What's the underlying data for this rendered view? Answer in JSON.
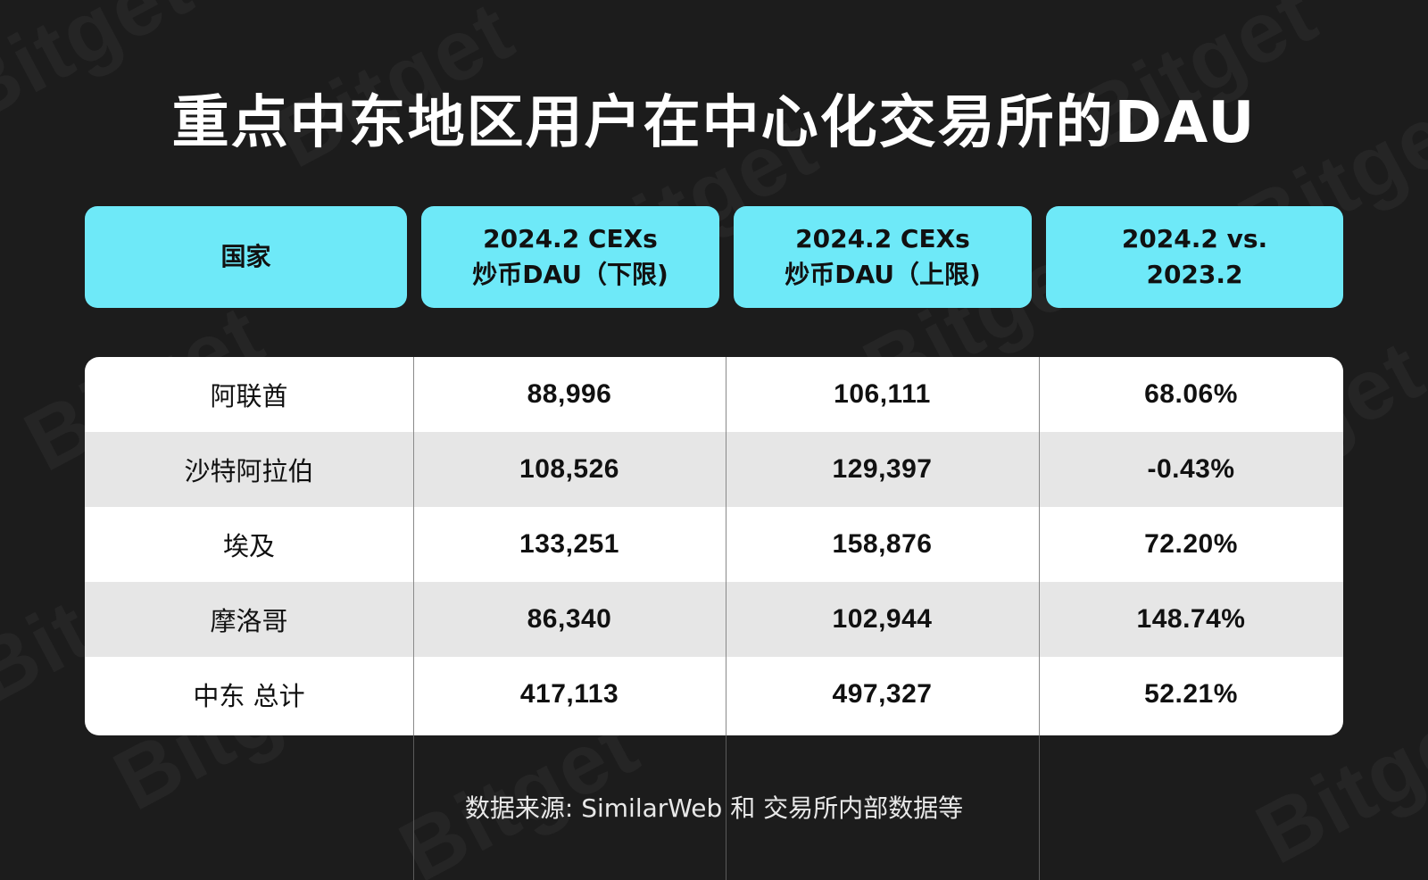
{
  "title": "重点中东地区用户在中心化交易所的DAU",
  "headers": [
    {
      "line1": "国家",
      "line2": ""
    },
    {
      "line1": "2024.2 CEXs",
      "line2": "炒币DAU（下限)"
    },
    {
      "line1": "2024.2 CEXs",
      "line2": "炒币DAU（上限)"
    },
    {
      "line1": "2024.2 vs.",
      "line2": "2023.2"
    }
  ],
  "rows": [
    {
      "country": "阿联酋",
      "low": "88,996",
      "high": "106,111",
      "change": "68.06%"
    },
    {
      "country": "沙特阿拉伯",
      "low": "108,526",
      "high": "129,397",
      "change": "-0.43%"
    },
    {
      "country": "埃及",
      "low": "133,251",
      "high": "158,876",
      "change": "72.20%"
    },
    {
      "country": "摩洛哥",
      "low": "86,340",
      "high": "102,944",
      "change": "148.74%"
    },
    {
      "country": "中东 总计",
      "low": "417,113",
      "high": "497,327",
      "change": "52.21%"
    }
  ],
  "source": "数据来源: SimilarWeb 和 交易所内部数据等",
  "watermark": "Bitget",
  "colors": {
    "background": "#1c1c1c",
    "header_accent": "#6ee9f8",
    "row_alt": "#e6e6e6",
    "row_base": "#ffffff"
  }
}
